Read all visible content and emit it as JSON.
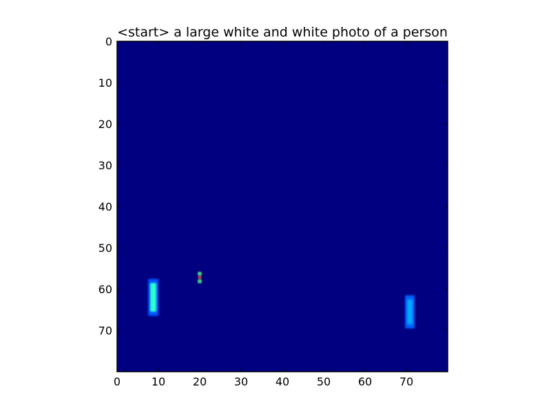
{
  "chart_data": {
    "type": "heatmap",
    "title": "<start> a large white and white photo of a person",
    "xlabel": "",
    "ylabel": "",
    "xlim": [
      0,
      80
    ],
    "ylim": [
      80,
      0
    ],
    "x_ticks": [
      0,
      10,
      20,
      30,
      40,
      50,
      60,
      70
    ],
    "y_ticks": [
      0,
      10,
      20,
      30,
      40,
      50,
      60,
      70
    ],
    "grid": false,
    "colormap": "jet",
    "background_value": 0.0,
    "colors": {
      "background": "#000080",
      "frame": "#000000"
    },
    "features": [
      {
        "name": "left-bar-halo",
        "x_range": [
          7.5,
          10
        ],
        "y_range": [
          57.5,
          66.5
        ],
        "value": 0.35,
        "color": "#0050ff"
      },
      {
        "name": "left-bar-core",
        "x_range": [
          8,
          9.5
        ],
        "y_range": [
          58.5,
          65.5
        ],
        "value": 0.55,
        "color": "#2cffd0"
      },
      {
        "name": "center-dot-top",
        "x_range": [
          19.5,
          20.5
        ],
        "y_range": [
          55.8,
          56.8
        ],
        "value": 0.45,
        "color": "#40c880"
      },
      {
        "name": "center-dot-mid",
        "x_range": [
          19.6,
          20.4
        ],
        "y_range": [
          56.8,
          57.6
        ],
        "value": 0.85,
        "color": "#d04030"
      },
      {
        "name": "center-dot-bottom",
        "x_range": [
          19.5,
          20.5
        ],
        "y_range": [
          57.6,
          58.6
        ],
        "value": 0.45,
        "color": "#40c880"
      },
      {
        "name": "right-bar-halo",
        "x_range": [
          69.7,
          72
        ],
        "y_range": [
          61.5,
          69.5
        ],
        "value": 0.3,
        "color": "#0060ff"
      },
      {
        "name": "right-bar-core",
        "x_range": [
          70.2,
          71.5
        ],
        "y_range": [
          62.5,
          68.5
        ],
        "value": 0.4,
        "color": "#00a8ff"
      }
    ]
  }
}
